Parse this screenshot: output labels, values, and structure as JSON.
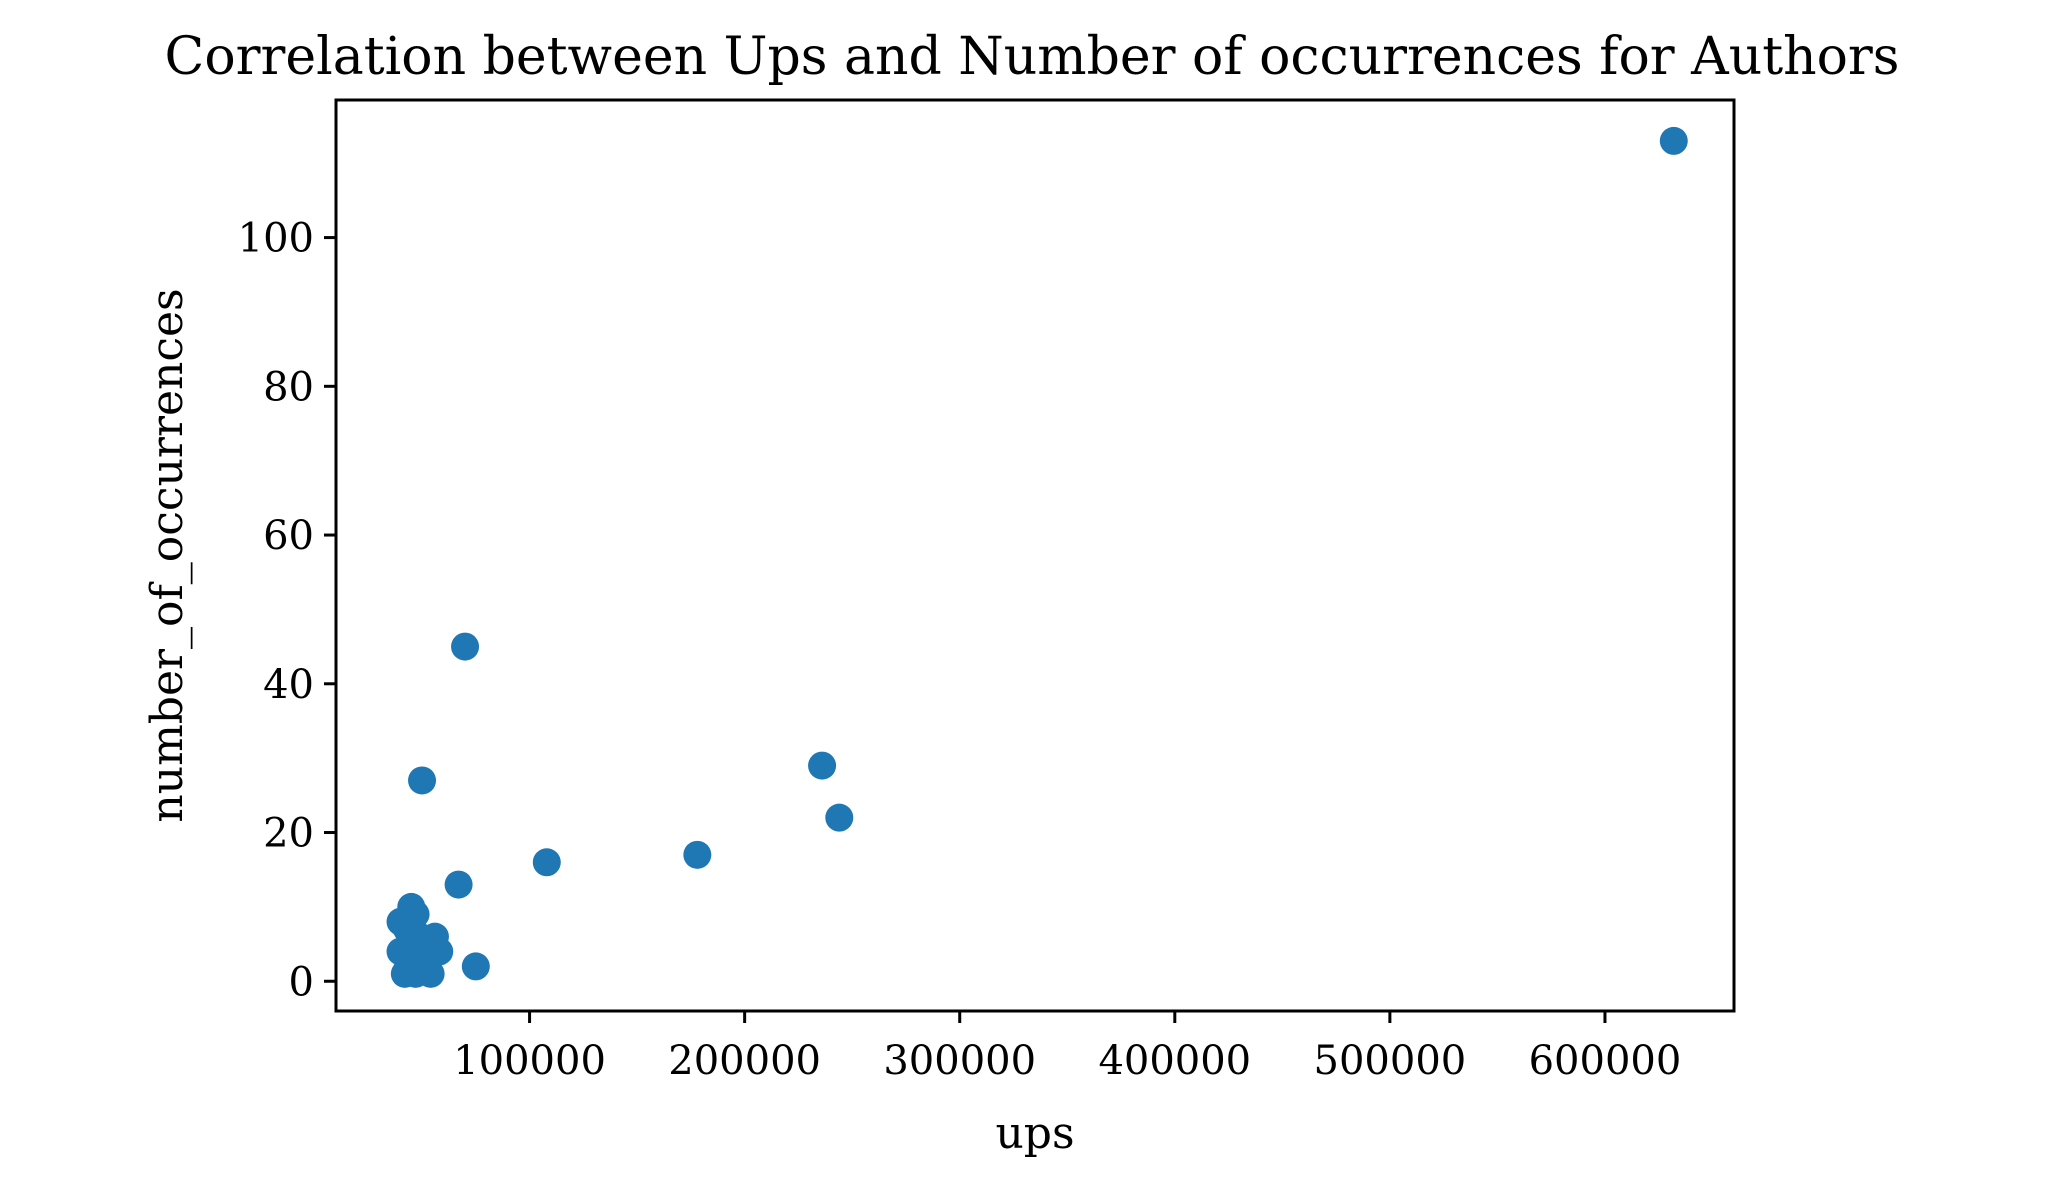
{
  "chart_data": {
    "type": "scatter",
    "title": "Correlation between Ups and Number of occurrences for Authors",
    "xlabel": "ups",
    "ylabel": "number_of_occurrences",
    "xlim": [
      10000,
      660000
    ],
    "ylim": [
      -4,
      118.5
    ],
    "xticks": [
      100000,
      200000,
      300000,
      400000,
      500000,
      600000
    ],
    "yticks": [
      0,
      20,
      40,
      60,
      80,
      100
    ],
    "xtick_labels": [
      "100000",
      "200000",
      "300000",
      "400000",
      "500000",
      "600000"
    ],
    "ytick_labels": [
      "0",
      "20",
      "40",
      "60",
      "80",
      "100"
    ],
    "grid": false,
    "marker_color": "#1f77b4",
    "points": [
      {
        "x": 632000,
        "y": 113
      },
      {
        "x": 70000,
        "y": 45
      },
      {
        "x": 236000,
        "y": 29
      },
      {
        "x": 50000,
        "y": 27
      },
      {
        "x": 244000,
        "y": 22
      },
      {
        "x": 178000,
        "y": 17
      },
      {
        "x": 108000,
        "y": 16
      },
      {
        "x": 67000,
        "y": 13
      },
      {
        "x": 45000,
        "y": 10
      },
      {
        "x": 47000,
        "y": 9
      },
      {
        "x": 40000,
        "y": 8
      },
      {
        "x": 43000,
        "y": 7
      },
      {
        "x": 49000,
        "y": 6
      },
      {
        "x": 56000,
        "y": 6
      },
      {
        "x": 46000,
        "y": 5
      },
      {
        "x": 52000,
        "y": 5
      },
      {
        "x": 40000,
        "y": 4
      },
      {
        "x": 48000,
        "y": 4
      },
      {
        "x": 58000,
        "y": 4
      },
      {
        "x": 43000,
        "y": 3
      },
      {
        "x": 51000,
        "y": 3
      },
      {
        "x": 75000,
        "y": 2
      },
      {
        "x": 46000,
        "y": 2
      },
      {
        "x": 42000,
        "y": 1
      },
      {
        "x": 47000,
        "y": 1
      },
      {
        "x": 54000,
        "y": 1
      }
    ]
  }
}
